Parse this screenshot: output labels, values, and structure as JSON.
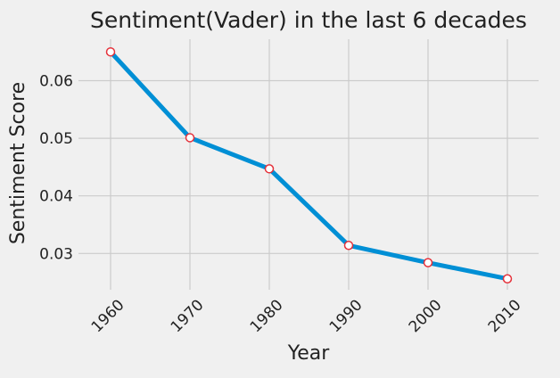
{
  "chart_data": {
    "type": "line",
    "title": "Sentiment(Vader) in the last 6 decades",
    "xlabel": "Year",
    "ylabel": "Sentiment Score",
    "categories": [
      "1960",
      "1970",
      "1980",
      "1990",
      "2000",
      "2010"
    ],
    "series": [
      {
        "values": [
          0.065,
          0.0501,
          0.0447,
          0.0314,
          0.0284,
          0.0256
        ]
      }
    ],
    "yticks": [
      "0.03",
      "0.04",
      "0.05",
      "0.06"
    ],
    "ylim": [
      0.0237,
      0.0672
    ],
    "grid": true,
    "colors": {
      "line": "#008fd5",
      "marker_edge": "#e5323b",
      "marker_fill": "#ffffff",
      "grid": "#cbcbcb",
      "background": "#f0f0f0"
    }
  }
}
